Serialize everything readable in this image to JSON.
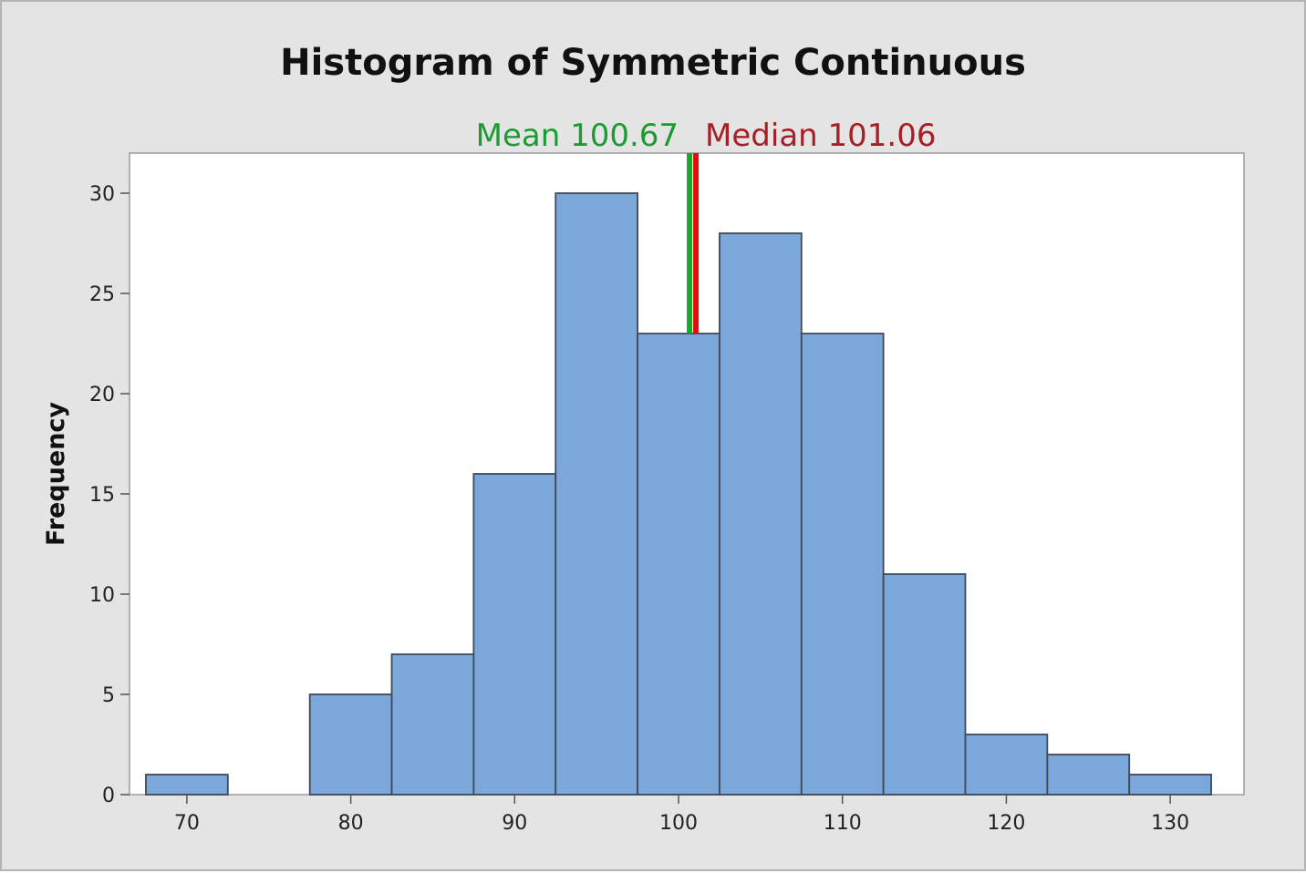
{
  "chart_data": {
    "type": "bar",
    "title": "Histogram of Symmetric Continuous",
    "xlabel": "",
    "ylabel": "Frequency",
    "bin_width": 5,
    "bins": [
      {
        "center": 70,
        "count": 1
      },
      {
        "center": 75,
        "count": 0
      },
      {
        "center": 80,
        "count": 5
      },
      {
        "center": 85,
        "count": 7
      },
      {
        "center": 90,
        "count": 16
      },
      {
        "center": 95,
        "count": 30
      },
      {
        "center": 100,
        "count": 23
      },
      {
        "center": 105,
        "count": 28
      },
      {
        "center": 110,
        "count": 23
      },
      {
        "center": 115,
        "count": 11
      },
      {
        "center": 120,
        "count": 3
      },
      {
        "center": 125,
        "count": 2
      },
      {
        "center": 130,
        "count": 1
      }
    ],
    "x_ticks": [
      "70",
      "80",
      "90",
      "100",
      "110",
      "120",
      "130"
    ],
    "y_ticks": [
      "0",
      "5",
      "10",
      "15",
      "20",
      "25",
      "30"
    ],
    "xlim": [
      66.5,
      134.5
    ],
    "ylim": [
      0,
      32
    ],
    "reference_lines": [
      {
        "name": "Mean",
        "value": 100.67,
        "label": "Mean 100.67",
        "color": "#18a82b",
        "text_color": "#1d9a31"
      },
      {
        "name": "Median",
        "value": 101.06,
        "label": "Median 101.06",
        "color": "#e01010",
        "text_color": "#a51f24"
      }
    ],
    "bar_color": "#7ba7da",
    "bar_edge_color": "#3f4a57",
    "grid": false,
    "legend": "none"
  }
}
